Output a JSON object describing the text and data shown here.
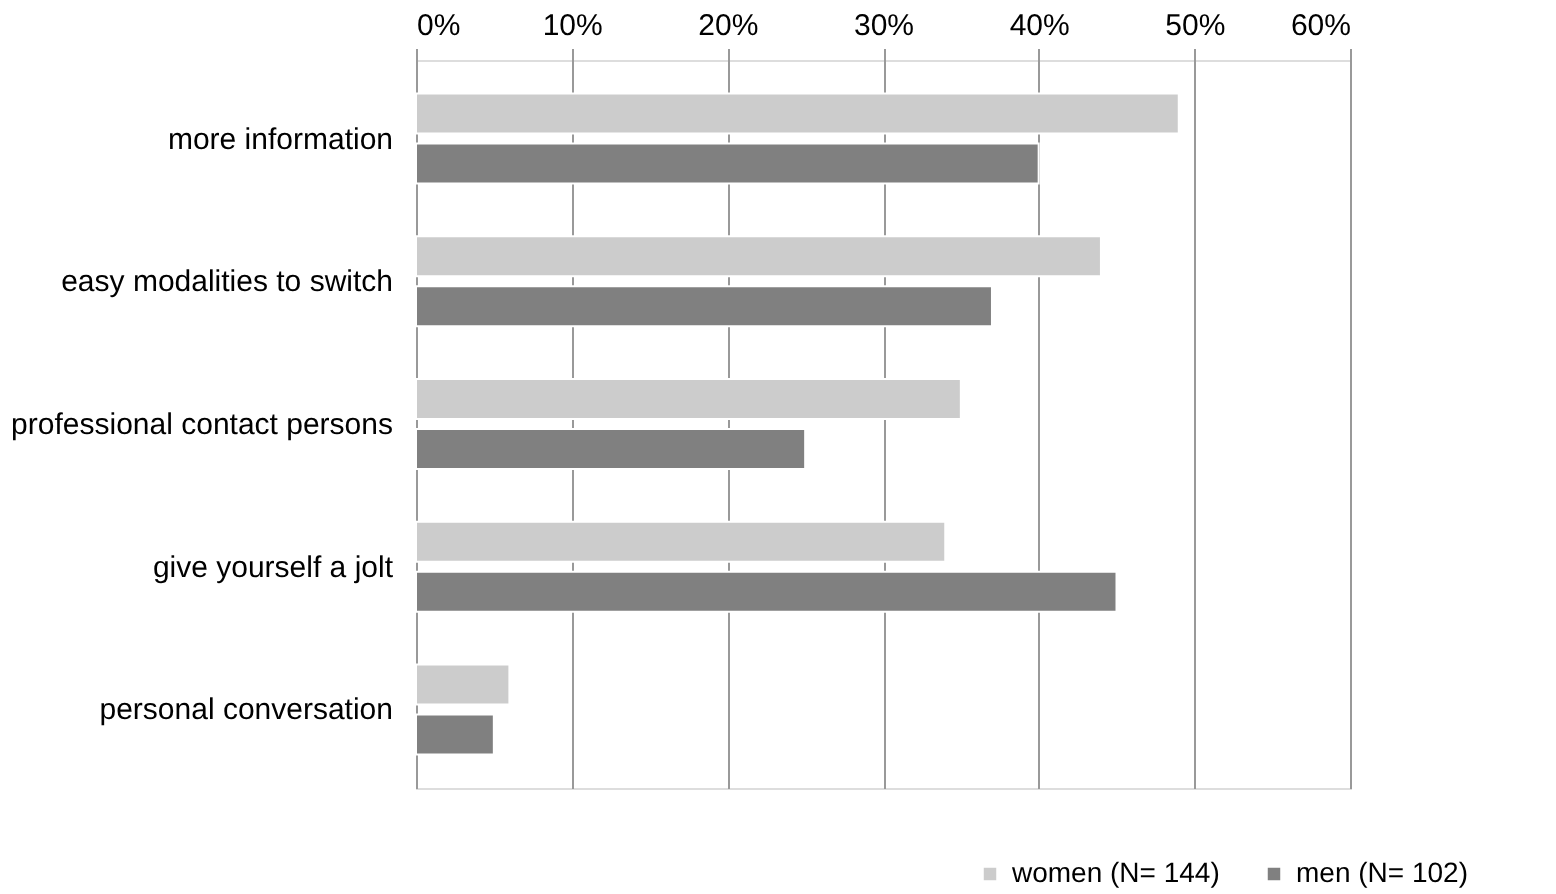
{
  "chart_data": {
    "type": "bar",
    "orientation": "horizontal",
    "categories": [
      "more information",
      "easy modalities to switch",
      "professional contact persons",
      "give yourself a jolt",
      "personal conversation"
    ],
    "series": [
      {
        "name": "women (N= 144)",
        "color": "#cccccc",
        "values": [
          49,
          44,
          35,
          34,
          6
        ]
      },
      {
        "name": "men (N= 102)",
        "color": "#808080",
        "values": [
          40,
          37,
          25,
          45,
          5
        ]
      }
    ],
    "xlim": [
      0,
      60
    ],
    "xticks": [
      {
        "value": 0,
        "label": "0%"
      },
      {
        "value": 10,
        "label": "10%"
      },
      {
        "value": 20,
        "label": "20%"
      },
      {
        "value": 30,
        "label": "30%"
      },
      {
        "value": 40,
        "label": "40%"
      },
      {
        "value": 50,
        "label": "50%"
      },
      {
        "value": 60,
        "label": "60%"
      }
    ],
    "grid": "x",
    "legend": "bottom right"
  }
}
